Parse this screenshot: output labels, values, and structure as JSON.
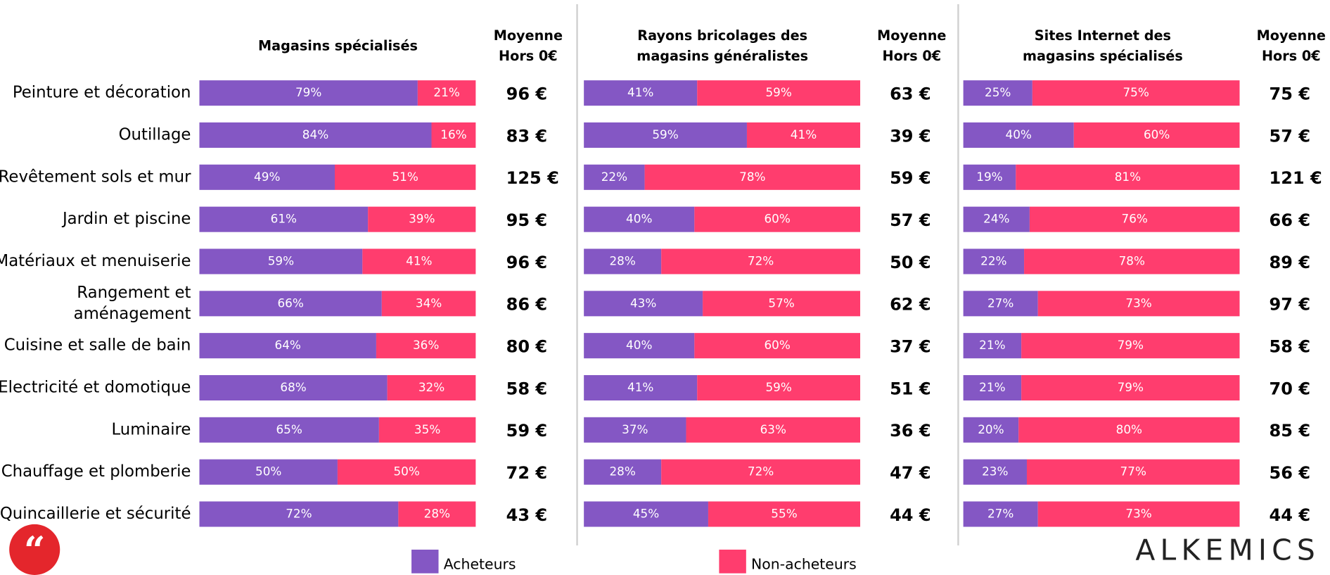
{
  "chart_data": [
    {
      "type": "bar",
      "stacked": true,
      "orientation": "horizontal",
      "xlim": [
        0,
        100
      ],
      "title": [
        "Magasins spécialisés"
      ],
      "average_header": [
        "Moyenne",
        "Hors 0€"
      ],
      "categories": [
        "Peinture et décoration",
        "Outillage",
        "Revêtement sols et mur",
        "Jardin et piscine",
        "Matériaux et menuiserie",
        [
          "Rangement et",
          "aménagement"
        ],
        "Cuisine et salle de bain",
        "Electricité et domotique",
        "Luminaire",
        "Chauffage et plomberie",
        "Quincaillerie et sécurité"
      ],
      "series": [
        {
          "name": "Acheteurs",
          "color": "#8457c4",
          "values": [
            79,
            84,
            49,
            61,
            59,
            66,
            64,
            68,
            65,
            50,
            72
          ],
          "value_labels": [
            "79%",
            "84%",
            "49%",
            "61%",
            "59%",
            "66%",
            "64%",
            "68%",
            "65%",
            "50%",
            "72%"
          ]
        },
        {
          "name": "Non-acheteurs",
          "color": "#ff3d6e",
          "values": [
            21,
            16,
            51,
            39,
            41,
            34,
            36,
            32,
            35,
            50,
            28
          ],
          "value_labels": [
            "21%",
            "16%",
            "51%",
            "39%",
            "41%",
            "34%",
            "36%",
            "32%",
            "35%",
            "50%",
            "28%"
          ]
        }
      ],
      "averages": [
        "96 €",
        "83 €",
        "125 €",
        "95 €",
        "96 €",
        "86 €",
        "80 €",
        "58 €",
        "59 €",
        "72 €",
        "43 €"
      ]
    },
    {
      "type": "bar",
      "stacked": true,
      "orientation": "horizontal",
      "xlim": [
        0,
        100
      ],
      "title": [
        "Rayons bricolages des",
        "magasins généralistes"
      ],
      "average_header": [
        "Moyenne",
        "Hors 0€"
      ],
      "series": [
        {
          "color": "#8457c4",
          "values": [
            41,
            59,
            22,
            40,
            28,
            43,
            40,
            41,
            37,
            28,
            45
          ],
          "value_labels": [
            "41%",
            "59%",
            "22%",
            "40%",
            "28%",
            "43%",
            "40%",
            "41%",
            "37%",
            "28%",
            "45%"
          ]
        },
        {
          "color": "#ff3d6e",
          "values": [
            59,
            41,
            78,
            60,
            72,
            57,
            60,
            59,
            63,
            72,
            55
          ],
          "value_labels": [
            "59%",
            "41%",
            "78%",
            "60%",
            "72%",
            "57%",
            "60%",
            "59%",
            "63%",
            "72%",
            "55%"
          ]
        }
      ],
      "averages": [
        "63 €",
        "39 €",
        "59 €",
        "57 €",
        "50 €",
        "62 €",
        "37 €",
        "51 €",
        "36 €",
        "47 €",
        "44 €"
      ]
    },
    {
      "type": "bar",
      "stacked": true,
      "orientation": "horizontal",
      "xlim": [
        0,
        100
      ],
      "title": [
        "Sites Internet des",
        "magasins spécialisés"
      ],
      "average_header": [
        "Moyenne",
        "Hors 0€"
      ],
      "series": [
        {
          "color": "#8457c4",
          "values": [
            25,
            40,
            19,
            24,
            22,
            27,
            21,
            21,
            20,
            23,
            27
          ],
          "value_labels": [
            "25%",
            "40%",
            "19%",
            "24%",
            "22%",
            "27%",
            "21%",
            "21%",
            "20%",
            "23%",
            "27%"
          ]
        },
        {
          "color": "#ff3d6e",
          "values": [
            75,
            60,
            81,
            76,
            78,
            73,
            79,
            79,
            80,
            77,
            73
          ],
          "value_labels": [
            "75%",
            "60%",
            "81%",
            "76%",
            "78%",
            "73%",
            "79%",
            "79%",
            "80%",
            "77%",
            "73%"
          ]
        }
      ],
      "averages": [
        "75 €",
        "57 €",
        "121 €",
        "66 €",
        "89 €",
        "97 €",
        "58 €",
        "70 €",
        "85 €",
        "56 €",
        "44 €"
      ]
    }
  ],
  "logo": "ALKEMICS"
}
